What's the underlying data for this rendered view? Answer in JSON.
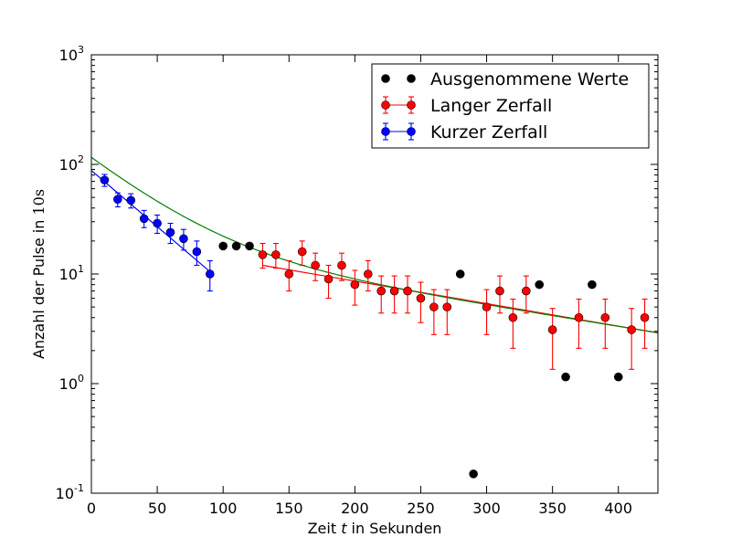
{
  "chart_data": {
    "type": "scatter",
    "xlabel_pre": "Zeit ",
    "xlabel_var": "t",
    "xlabel_post": " in Sekunden",
    "ylabel_pre": "Anzahl der Pulse in ",
    "ylabel_math": "10s",
    "xlim": [
      0,
      430
    ],
    "ylim": [
      0.1,
      1000
    ],
    "yscale": "log",
    "grid": false,
    "legend_position": "top-right",
    "x_ticks": [
      0,
      50,
      100,
      150,
      200,
      250,
      300,
      350,
      400
    ],
    "y_ticks": [
      {
        "value": 0.1,
        "base": "10",
        "exp": "-1"
      },
      {
        "value": 1,
        "base": "10",
        "exp": "0"
      },
      {
        "value": 10,
        "base": "10",
        "exp": "1"
      },
      {
        "value": 100,
        "base": "10",
        "exp": "2"
      },
      {
        "value": 1000,
        "base": "10",
        "exp": "3"
      }
    ],
    "series": [
      {
        "name": "Ausgenommene Werte",
        "color": "#000000",
        "errorbars": false,
        "points": [
          {
            "x": 100,
            "y": 18
          },
          {
            "x": 110,
            "y": 18
          },
          {
            "x": 120,
            "y": 18
          },
          {
            "x": 280,
            "y": 10
          },
          {
            "x": 290,
            "y": 0.15
          },
          {
            "x": 340,
            "y": 8
          },
          {
            "x": 360,
            "y": 1.15
          },
          {
            "x": 380,
            "y": 8
          },
          {
            "x": 400,
            "y": 1.15
          }
        ]
      },
      {
        "name": "Langer Zerfall",
        "color": "#ff0000",
        "errorbars": true,
        "points": [
          {
            "x": 130,
            "y": 15,
            "lo": 11.3,
            "hi": 19
          },
          {
            "x": 140,
            "y": 15,
            "lo": 11.3,
            "hi": 19
          },
          {
            "x": 150,
            "y": 10,
            "lo": 7,
            "hi": 13.2
          },
          {
            "x": 160,
            "y": 16,
            "lo": 12,
            "hi": 20
          },
          {
            "x": 170,
            "y": 12,
            "lo": 8.7,
            "hi": 15.5
          },
          {
            "x": 180,
            "y": 9,
            "lo": 6,
            "hi": 12
          },
          {
            "x": 190,
            "y": 12,
            "lo": 8.7,
            "hi": 15.5
          },
          {
            "x": 200,
            "y": 8,
            "lo": 5.2,
            "hi": 10.8
          },
          {
            "x": 210,
            "y": 10,
            "lo": 7,
            "hi": 13.2
          },
          {
            "x": 220,
            "y": 7,
            "lo": 4.4,
            "hi": 9.6
          },
          {
            "x": 230,
            "y": 7,
            "lo": 4.4,
            "hi": 9.6
          },
          {
            "x": 240,
            "y": 7,
            "lo": 4.4,
            "hi": 9.6
          },
          {
            "x": 250,
            "y": 6,
            "lo": 3.6,
            "hi": 8.4
          },
          {
            "x": 260,
            "y": 5,
            "lo": 2.8,
            "hi": 7.2
          },
          {
            "x": 270,
            "y": 5,
            "lo": 2.8,
            "hi": 7.2
          },
          {
            "x": 300,
            "y": 5,
            "lo": 2.8,
            "hi": 7.2
          },
          {
            "x": 310,
            "y": 7,
            "lo": 4.4,
            "hi": 9.6
          },
          {
            "x": 320,
            "y": 4,
            "lo": 2.1,
            "hi": 5.9
          },
          {
            "x": 330,
            "y": 7,
            "lo": 4.4,
            "hi": 9.6
          },
          {
            "x": 350,
            "y": 3.1,
            "lo": 1.35,
            "hi": 4.85
          },
          {
            "x": 370,
            "y": 4,
            "lo": 2.1,
            "hi": 5.9
          },
          {
            "x": 390,
            "y": 4,
            "lo": 2.1,
            "hi": 5.9
          },
          {
            "x": 410,
            "y": 3.1,
            "lo": 1.35,
            "hi": 4.85
          },
          {
            "x": 420,
            "y": 4,
            "lo": 2.1,
            "hi": 5.9
          }
        ]
      },
      {
        "name": "Kurzer Zerfall",
        "color": "#0000ff",
        "errorbars": true,
        "points": [
          {
            "x": 10,
            "y": 72,
            "lo": 63,
            "hi": 81
          },
          {
            "x": 20,
            "y": 48,
            "lo": 41,
            "hi": 55
          },
          {
            "x": 30,
            "y": 47,
            "lo": 40,
            "hi": 54
          },
          {
            "x": 40,
            "y": 32,
            "lo": 26.5,
            "hi": 38
          },
          {
            "x": 50,
            "y": 29,
            "lo": 23.5,
            "hi": 34.5
          },
          {
            "x": 60,
            "y": 24,
            "lo": 19,
            "hi": 29
          },
          {
            "x": 70,
            "y": 21,
            "lo": 16.5,
            "hi": 25.5
          },
          {
            "x": 80,
            "y": 16,
            "lo": 12,
            "hi": 20
          },
          {
            "x": 90,
            "y": 10,
            "lo": 7,
            "hi": 13.2
          }
        ]
      }
    ],
    "fit_lines": [
      {
        "color": "#0000ff",
        "x": [
          0,
          90
        ],
        "y": [
          88,
          10.5
        ]
      },
      {
        "color": "#ff0000",
        "x": [
          130,
          430
        ],
        "y": [
          12,
          2.9
        ]
      },
      {
        "color": "#008000",
        "curve": "sum",
        "components": [
          {
            "A": 96.5,
            "tau": 43.4
          },
          {
            "A": 19.5,
            "tau": 226
          }
        ],
        "x": [
          0,
          430
        ]
      }
    ]
  }
}
